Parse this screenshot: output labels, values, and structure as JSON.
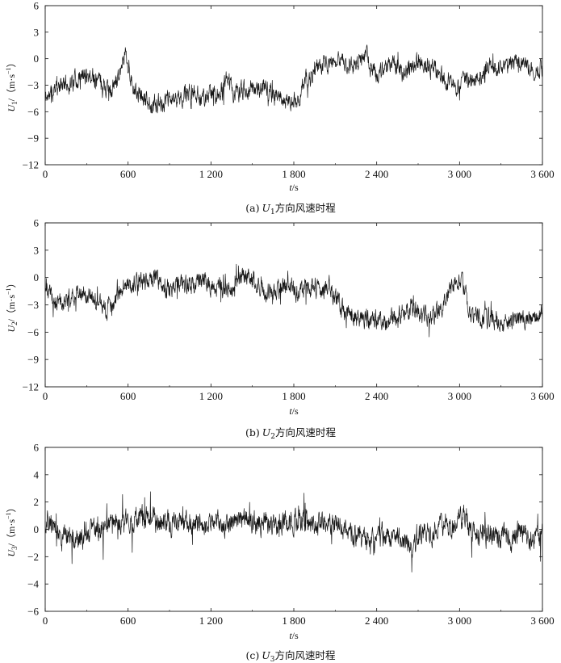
{
  "chart_data": [
    {
      "type": "line",
      "caption_prefix": "(a)",
      "caption_var": "U",
      "caption_sub": "1",
      "caption_suffix": "方向风速时程",
      "ylabel_var": "U",
      "ylabel_sub": "1",
      "ylabel_unit": "/（m·s",
      "ylabel_exp": "−1",
      "ylabel_close": "）",
      "xlabel_var": "t",
      "xlabel_unit": "/s",
      "xlim": [
        0,
        3600
      ],
      "ylim": [
        -12,
        6
      ],
      "xticks": [
        0,
        600,
        1200,
        1800,
        2400,
        3000,
        3600
      ],
      "xtick_labels": [
        "0",
        "600",
        "1 200",
        "1 800",
        "2 400",
        "3 000",
        "3 600"
      ],
      "yticks": [
        -12,
        -9,
        -6,
        -3,
        0,
        3,
        6
      ],
      "ytick_labels": [
        "−12",
        "−9",
        "−6",
        "−3",
        "0",
        "3",
        "6"
      ],
      "series_trend": {
        "x": [
          0,
          80,
          160,
          240,
          320,
          400,
          480,
          520,
          560,
          580,
          600,
          640,
          680,
          760,
          840,
          920,
          1000,
          1080,
          1160,
          1200,
          1280,
          1320,
          1360,
          1400,
          1480,
          1560,
          1640,
          1700,
          1760,
          1800,
          1840,
          1880,
          1920,
          1960,
          2040,
          2120,
          2200,
          2280,
          2320,
          2360,
          2400,
          2440,
          2480,
          2520,
          2560,
          2600,
          2640,
          2700,
          2760,
          2840,
          2920,
          2980,
          3020,
          3080,
          3160,
          3240,
          3320,
          3400,
          3480,
          3560,
          3600
        ],
        "y": [
          -4.5,
          -3.5,
          -2.8,
          -2.2,
          -1.8,
          -2.5,
          -3.8,
          -2.2,
          -0.3,
          1.0,
          -1.0,
          -3.5,
          -4.2,
          -5.0,
          -5.2,
          -4.6,
          -4.2,
          -3.8,
          -4.5,
          -4.0,
          -4.0,
          -2.0,
          -3.8,
          -3.8,
          -3.3,
          -3.3,
          -3.8,
          -4.4,
          -4.8,
          -4.6,
          -5.2,
          -2.5,
          -1.8,
          -1.0,
          -0.6,
          0.0,
          -0.8,
          -0.3,
          0.5,
          -1.0,
          -2.0,
          -1.2,
          -1.0,
          -0.3,
          -1.3,
          -2.0,
          -1.0,
          -0.2,
          -0.8,
          -1.5,
          -2.6,
          -3.6,
          -2.6,
          -2.6,
          -1.8,
          -1.0,
          -0.8,
          -0.6,
          -0.8,
          -1.3,
          -1.3
        ]
      },
      "noise_amp": 1.2,
      "seed": 11
    },
    {
      "type": "line",
      "caption_prefix": "(b)",
      "caption_var": "U",
      "caption_sub": "2",
      "caption_suffix": "方向风速时程",
      "ylabel_var": "U",
      "ylabel_sub": "2",
      "ylabel_unit": "/（m·s",
      "ylabel_exp": "−1",
      "ylabel_close": "）",
      "xlabel_var": "t",
      "xlabel_unit": "/s",
      "xlim": [
        0,
        3600
      ],
      "ylim": [
        -12,
        6
      ],
      "xticks": [
        0,
        600,
        1200,
        1800,
        2400,
        3000,
        3600
      ],
      "xtick_labels": [
        "0",
        "600",
        "1 200",
        "1 800",
        "2 400",
        "3 000",
        "3 600"
      ],
      "yticks": [
        -12,
        -9,
        -6,
        -3,
        0,
        3,
        6
      ],
      "ytick_labels": [
        "−12",
        "−9",
        "−6",
        "−3",
        "0",
        "3",
        "6"
      ],
      "series_trend": {
        "x": [
          0,
          60,
          120,
          200,
          280,
          360,
          440,
          500,
          540,
          580,
          640,
          720,
          800,
          880,
          960,
          1040,
          1120,
          1200,
          1280,
          1360,
          1440,
          1520,
          1600,
          1680,
          1760,
          1840,
          1920,
          2000,
          2060,
          2100,
          2160,
          2240,
          2320,
          2400,
          2480,
          2560,
          2640,
          2720,
          2800,
          2880,
          2920,
          2960,
          3000,
          3040,
          3080,
          3160,
          3240,
          3320,
          3400,
          3480,
          3560,
          3600
        ],
        "y": [
          -1.0,
          -2.5,
          -3.0,
          -1.8,
          -1.5,
          -2.5,
          -3.5,
          -2.8,
          -1.5,
          -0.5,
          -0.8,
          -0.5,
          0.0,
          -1.2,
          -0.8,
          -1.0,
          -0.6,
          -0.8,
          -1.2,
          -0.8,
          0.4,
          -0.2,
          -1.5,
          -1.2,
          -0.9,
          -1.6,
          -1.0,
          -1.5,
          -0.8,
          -2.2,
          -3.8,
          -4.3,
          -4.6,
          -4.6,
          -4.9,
          -4.2,
          -3.6,
          -4.2,
          -4.4,
          -3.3,
          -2.0,
          -0.3,
          0.0,
          -1.2,
          -4.2,
          -4.6,
          -4.7,
          -4.9,
          -4.8,
          -4.6,
          -4.4,
          -4.2
        ]
      },
      "noise_amp": 1.2,
      "seed": 23
    },
    {
      "type": "line",
      "caption_prefix": "(c)",
      "caption_var": "U",
      "caption_sub": "3",
      "caption_suffix": "方向风速时程",
      "ylabel_var": "U",
      "ylabel_sub": "3",
      "ylabel_unit": "/（m·s",
      "ylabel_exp": "−1",
      "ylabel_close": "）",
      "xlabel_var": "t",
      "xlabel_unit": "/s",
      "xlim": [
        0,
        3600
      ],
      "ylim": [
        -6,
        6
      ],
      "xticks": [
        0,
        600,
        1200,
        1800,
        2400,
        3000,
        3600
      ],
      "xtick_labels": [
        "0",
        "600",
        "1 200",
        "1 800",
        "2 400",
        "3 000",
        "3 600"
      ],
      "yticks": [
        -6,
        -4,
        -2,
        0,
        2,
        4,
        6
      ],
      "ytick_labels": [
        "−6",
        "−4",
        "−2",
        "0",
        "2",
        "4",
        "6"
      ],
      "series_trend": {
        "x": [
          0,
          60,
          120,
          180,
          240,
          300,
          360,
          440,
          520,
          600,
          680,
          760,
          840,
          920,
          1000,
          1080,
          1160,
          1240,
          1320,
          1400,
          1480,
          1560,
          1640,
          1720,
          1800,
          1880,
          1960,
          2040,
          2120,
          2200,
          2280,
          2360,
          2440,
          2520,
          2600,
          2660,
          2720,
          2800,
          2880,
          2960,
          3000,
          3040,
          3080,
          3160,
          3240,
          3320,
          3400,
          3480,
          3560,
          3600
        ],
        "y": [
          0.6,
          0.4,
          -0.2,
          -0.8,
          -0.6,
          -0.4,
          -0.2,
          0.0,
          0.6,
          0.4,
          0.8,
          0.8,
          0.6,
          0.4,
          0.6,
          0.2,
          0.4,
          0.6,
          0.3,
          0.9,
          0.4,
          0.5,
          0.2,
          0.6,
          0.8,
          0.6,
          0.4,
          0.3,
          0.2,
          0.0,
          -0.6,
          -0.8,
          -0.4,
          -0.6,
          -0.8,
          -1.2,
          -0.3,
          -0.2,
          0.2,
          0.4,
          0.6,
          1.2,
          -0.2,
          -0.3,
          -0.6,
          -0.6,
          -0.4,
          -0.5,
          -0.5,
          -0.5
        ]
      },
      "noise_amp": 1.0,
      "seed": 37
    }
  ]
}
